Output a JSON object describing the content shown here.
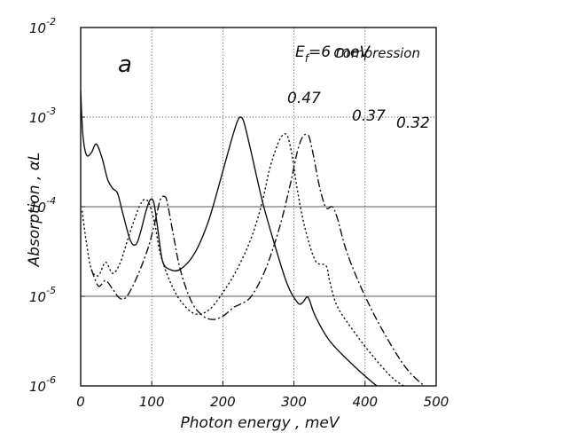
{
  "chart_data": {
    "type": "line",
    "xlabel": "Photon energy , meV",
    "ylabel": "Absorption , αL",
    "xlim": [
      0,
      500
    ],
    "ylim_log10": [
      -6,
      -2
    ],
    "y_scale": "log",
    "grid": true,
    "x_ticks": [
      "0",
      "100",
      "200",
      "300",
      "400",
      "500"
    ],
    "y_ticks": [
      {
        "base": "10",
        "exp": "-6"
      },
      {
        "base": "10",
        "exp": "-5"
      },
      {
        "base": "10",
        "exp": "-4"
      },
      {
        "base": "10",
        "exp": "-3"
      },
      {
        "base": "10",
        "exp": "-2"
      }
    ],
    "annotations": {
      "panel": "a",
      "fermi": {
        "main": "E",
        "sub": "f",
        "rest": "=6 meV"
      },
      "mode": "Compression",
      "peak_labels": [
        "0.47",
        "0.37",
        "0.32"
      ]
    },
    "series": [
      {
        "label": "0.47",
        "style": "solid",
        "x": [
          0,
          3,
          8,
          15,
          22,
          30,
          38,
          45,
          52,
          60,
          70,
          78,
          85,
          92,
          98,
          103,
          108,
          115,
          125,
          140,
          160,
          180,
          200,
          212,
          220,
          225,
          230,
          240,
          255,
          270,
          290,
          305,
          312,
          318,
          322,
          330,
          350,
          380,
          410,
          425
        ],
        "y": [
          0.002,
          0.00065,
          0.00038,
          0.0004,
          0.0005,
          0.00035,
          0.0002,
          0.00016,
          0.00014,
          8e-05,
          4.2e-05,
          3.8e-05,
          5.5e-05,
          9e-05,
          0.00012,
          0.00011,
          6e-05,
          2.5e-05,
          2e-05,
          2e-05,
          3e-05,
          7e-05,
          0.00025,
          0.00055,
          0.00088,
          0.001,
          0.00085,
          0.0004,
          0.00012,
          4.5e-05,
          1.4e-05,
          8.5e-06,
          8.5e-06,
          9.8e-06,
          9e-06,
          6e-06,
          3.2e-06,
          1.8e-06,
          1.1e-06,
          9e-07
        ]
      },
      {
        "label": "0.37",
        "style": "dotted",
        "x": [
          2,
          8,
          15,
          25,
          35,
          45,
          55,
          65,
          75,
          85,
          92,
          98,
          105,
          112,
          125,
          140,
          160,
          180,
          200,
          220,
          240,
          255,
          265,
          275,
          282,
          288,
          292,
          298,
          305,
          315,
          330,
          345,
          350,
          360,
          380,
          410,
          440,
          465
        ],
        "y": [
          9e-05,
          4e-05,
          2e-05,
          1.7e-05,
          2.4e-05,
          1.8e-05,
          2.3e-05,
          4e-05,
          7e-05,
          0.00011,
          0.00012,
          0.0001,
          6e-05,
          3e-05,
          1.5e-05,
          9e-06,
          6.4e-06,
          7e-06,
          1.1e-05,
          2e-05,
          4.5e-05,
          0.00011,
          0.00025,
          0.00045,
          0.0006,
          0.00065,
          0.00058,
          0.00035,
          0.00015,
          6e-05,
          2.5e-05,
          2.2e-05,
          1.5e-05,
          8e-06,
          4.5e-06,
          2.2e-06,
          1.2e-06,
          9e-07
        ]
      },
      {
        "label": "0.32",
        "style": "dash-dot",
        "x": [
          15,
          25,
          35,
          45,
          55,
          65,
          80,
          95,
          105,
          112,
          118,
          122,
          130,
          140,
          155,
          170,
          185,
          200,
          215,
          225,
          240,
          260,
          280,
          295,
          305,
          312,
          318,
          322,
          328,
          335,
          342,
          347,
          352,
          356,
          362,
          375,
          400,
          430,
          460,
          490
        ],
        "y": [
          2e-05,
          1.3e-05,
          1.5e-05,
          1.2e-05,
          9.5e-06,
          1e-05,
          1.7e-05,
          3.5e-05,
          7e-05,
          0.00012,
          0.00013,
          0.00011,
          5e-05,
          2e-05,
          9e-06,
          6.2e-06,
          5.5e-06,
          6e-06,
          7.5e-06,
          8.2e-06,
          1e-05,
          2e-05,
          6e-05,
          0.00018,
          0.00042,
          0.0006,
          0.00064,
          0.00058,
          0.00035,
          0.00018,
          0.00011,
          9.5e-05,
          0.0001,
          9.5e-05,
          7e-05,
          3e-05,
          1e-05,
          3.5e-06,
          1.5e-06,
          9e-07
        ]
      }
    ]
  }
}
